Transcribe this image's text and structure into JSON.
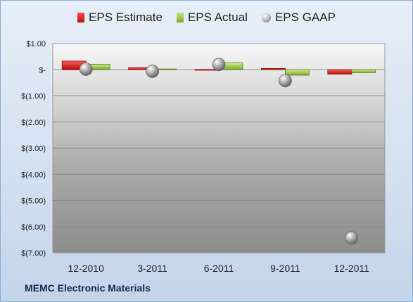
{
  "company_label": "MEMC Electronic Materials",
  "colors": {
    "estimate": "#d42020",
    "actual": "#9ccc4a",
    "gaap": "#9a9a9a"
  },
  "chart_data": {
    "type": "bar",
    "categories": [
      "12-2010",
      "3-2011",
      "6-2011",
      "9-2011",
      "12-2011"
    ],
    "series": [
      {
        "name": "EPS Estimate",
        "kind": "bar",
        "values": [
          0.33,
          0.08,
          0.01,
          0.05,
          -0.17
        ]
      },
      {
        "name": "EPS Actual",
        "kind": "bar",
        "values": [
          0.21,
          0.03,
          0.26,
          -0.21,
          -0.11
        ]
      },
      {
        "name": "EPS GAAP",
        "kind": "scatter",
        "values": [
          0.02,
          -0.06,
          0.2,
          -0.42,
          -6.43
        ]
      }
    ],
    "yticks": [
      "$1.00",
      "$-",
      "$(1.00)",
      "$(2.00)",
      "$(3.00)",
      "$(4.00)",
      "$(5.00)",
      "$(6.00)",
      "$(7.00)"
    ],
    "ytick_values": [
      1,
      0,
      -1,
      -2,
      -3,
      -4,
      -5,
      -6,
      -7
    ],
    "ylim": [
      -7,
      1
    ],
    "title": "",
    "xlabel": "",
    "ylabel": "",
    "legend_position": "top",
    "grid": true
  }
}
